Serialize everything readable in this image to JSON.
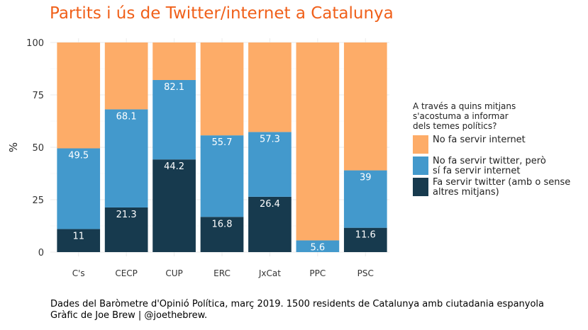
{
  "title": "Partits i ús de Twitter/internet a Catalunya",
  "caption_line1": "Dades del Baròmetre d'Opinió Política, març 2019. 1500 residents de Catalunya amb ciutadania espanyola",
  "caption_line2": "Gràfic de Joe Brew | @joethebrew.",
  "legend": {
    "title": "A través a quins mitjans s'acostuma a informar dels temes polítics?",
    "items": [
      {
        "label": "No fa servir internet",
        "color": "#fdac68"
      },
      {
        "label": "No fa servir twitter, però sí fa servir internet",
        "color": "#4399cc"
      },
      {
        "label": "Fa servir twitter (amb o sense altres mitjans)",
        "color": "#173a4e"
      }
    ]
  },
  "chart_data": {
    "type": "bar",
    "stacked": true,
    "title": "Partits i ús de Twitter/internet a Catalunya",
    "xlabel": "",
    "ylabel": "%",
    "ylim": [
      0,
      100
    ],
    "yticks": [
      0,
      25,
      50,
      75,
      100
    ],
    "categories": [
      "C's",
      "CECP",
      "CUP",
      "ERC",
      "JxCat",
      "PPC",
      "PSC"
    ],
    "cumulative_labels": [
      [
        "11",
        "49.5"
      ],
      [
        "21.3",
        "68.1"
      ],
      [
        "44.2",
        "82.1"
      ],
      [
        "16.8",
        "55.7"
      ],
      [
        "26.4",
        "57.3"
      ],
      [
        "",
        "5.6"
      ],
      [
        "11.6",
        "39"
      ]
    ],
    "series": [
      {
        "name": "Fa servir twitter (amb o sense altres mitjans)",
        "color": "#173a4e",
        "values": [
          11,
          21.3,
          44.2,
          16.8,
          26.4,
          0,
          11.6
        ]
      },
      {
        "name": "No fa servir twitter, però sí fa servir internet",
        "color": "#4399cc",
        "values": [
          38.5,
          46.8,
          37.9,
          38.9,
          30.9,
          5.6,
          27.4
        ]
      },
      {
        "name": "No fa servir internet",
        "color": "#fdac68",
        "values": [
          50.5,
          31.9,
          17.9,
          44.3,
          42.7,
          94.4,
          61
        ]
      }
    ]
  }
}
